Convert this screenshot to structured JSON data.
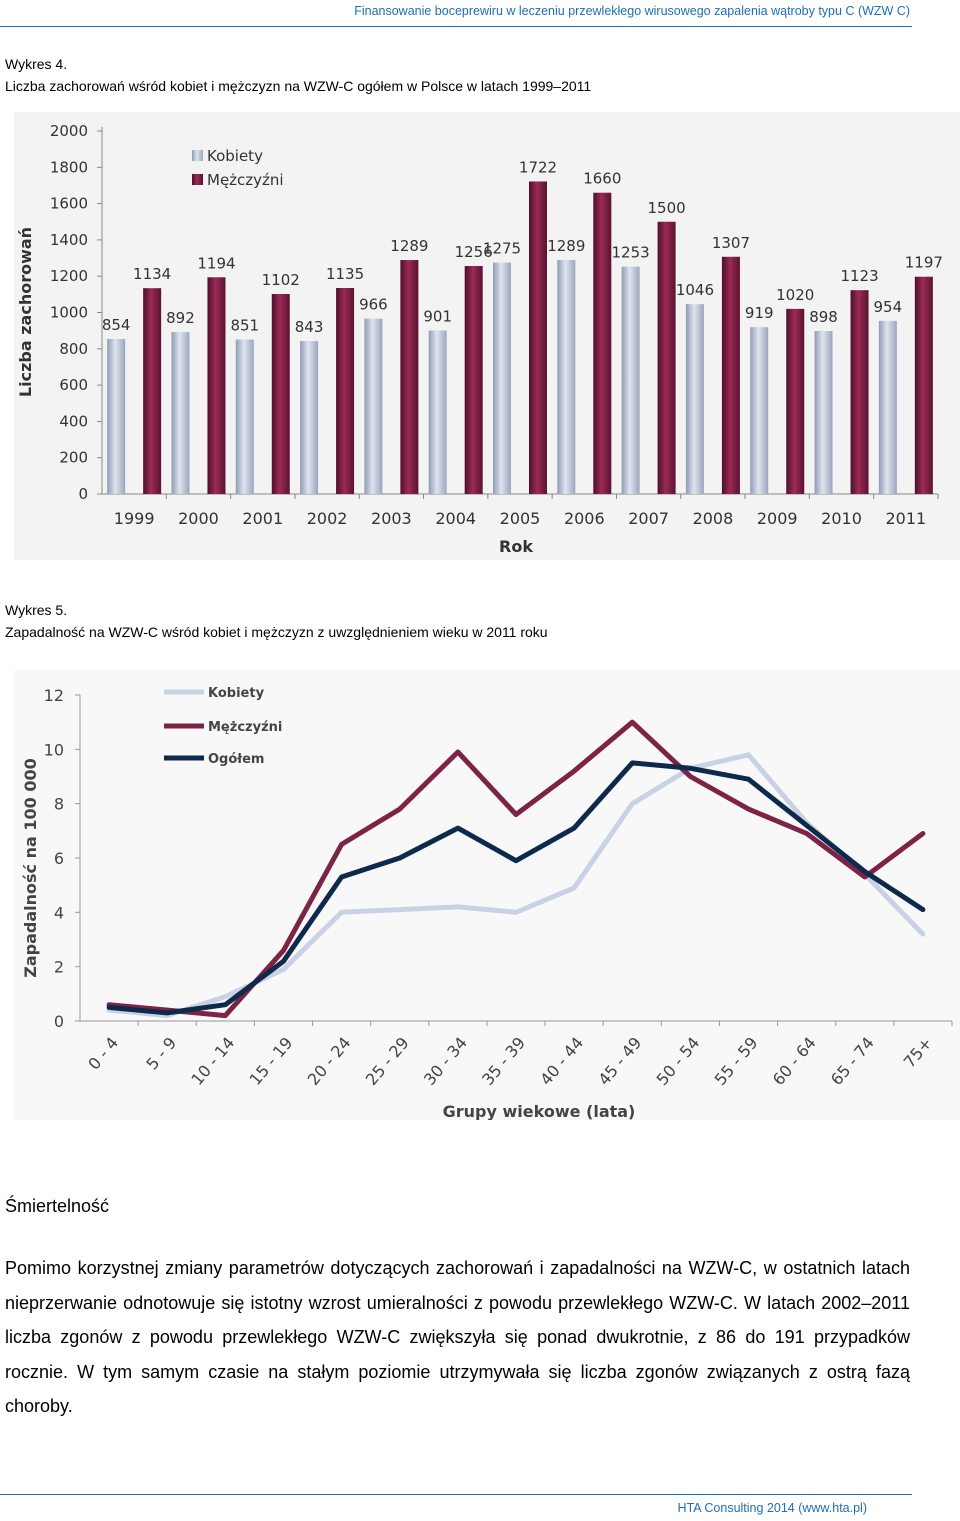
{
  "header": {
    "running_title": "Finansowanie boceprewiru w leczeniu przewlekłego wirusowego zapalenia wątroby typu C (WZW C)"
  },
  "figure4": {
    "number": "Wykres 4.",
    "caption": "Liczba zachorowań wśród kobiet i mężczyzn na WZW-C ogółem w Polsce w latach 1999–2011"
  },
  "figure5": {
    "number": "Wykres 5.",
    "caption": "Zapadalność na WZW-C wśród kobiet i mężczyzn z uwzględnieniem wieku w 2011 roku"
  },
  "chart_data": [
    {
      "type": "bar",
      "categories": [
        "1999",
        "2000",
        "2001",
        "2002",
        "2003",
        "2004",
        "2005",
        "2006",
        "2007",
        "2008",
        "2009",
        "2010",
        "2011"
      ],
      "series": [
        {
          "name": "Kobiety",
          "color": "#b9c3d6",
          "values": [
            854,
            892,
            851,
            843,
            966,
            901,
            1275,
            1289,
            1253,
            1046,
            919,
            898,
            954
          ]
        },
        {
          "name": "Mężczyźni",
          "color": "#7c1f43",
          "values": [
            1134,
            1194,
            1102,
            1135,
            1289,
            1256,
            1722,
            1660,
            1500,
            1307,
            1020,
            1123,
            1197
          ]
        }
      ],
      "xlabel": "Rok",
      "ylabel": "Liczba zachorowań",
      "ylim": [
        0,
        2000
      ],
      "yticks": [
        "0",
        "200",
        "400",
        "600",
        "800",
        "1000",
        "1200",
        "1400",
        "1600",
        "1800",
        "2000"
      ],
      "legend": "top-left",
      "grid": false
    },
    {
      "type": "line",
      "categories": [
        "0 - 4",
        "5 - 9",
        "10 - 14",
        "15 - 19",
        "20 - 24",
        "25 - 29",
        "30 - 34",
        "35 - 39",
        "40 - 44",
        "45 - 49",
        "50 - 54",
        "55 - 59",
        "60 - 64",
        "65 - 74",
        "75+"
      ],
      "series": [
        {
          "name": "Kobiety",
          "color": "#c9d2e4",
          "values": [
            0.4,
            0.2,
            0.9,
            1.9,
            4.0,
            4.1,
            4.2,
            4.0,
            4.9,
            8.0,
            9.3,
            9.8,
            7.3,
            5.4,
            3.2
          ]
        },
        {
          "name": "Mężczyźni",
          "color": "#7c2346",
          "values": [
            0.6,
            0.4,
            0.2,
            2.6,
            6.5,
            7.8,
            9.9,
            7.6,
            9.2,
            11.0,
            9.0,
            7.8,
            6.9,
            5.3,
            6.9
          ]
        },
        {
          "name": "Ogółem",
          "color": "#0d2a4d",
          "values": [
            0.5,
            0.3,
            0.6,
            2.2,
            5.3,
            6.0,
            7.1,
            5.9,
            7.1,
            9.5,
            9.3,
            8.9,
            7.2,
            5.5,
            4.1
          ]
        }
      ],
      "xlabel": "Grupy wiekowe (lata)",
      "ylabel": "Zapadalność na 100 000",
      "ylim": [
        0,
        12
      ],
      "yticks": [
        "0",
        "2",
        "4",
        "6",
        "8",
        "10",
        "12"
      ],
      "legend": "top-left",
      "grid": false
    }
  ],
  "section": {
    "heading": "Śmiertelność",
    "paragraph": "Pomimo korzystnej zmiany parametrów dotyczących zachorowań i zapadalności na WZW-C, w ostatnich latach nieprzerwanie odnotowuje się istotny wzrost umieralności z powodu przewlekłego WZW-C. W latach 2002–2011 liczba zgonów z powodu przewlekłego WZW-C zwiększyła się ponad dwukrotnie, z 86 do 191 przypadków rocznie. W tym samym czasie na stałym poziomie utrzymywała się liczba zgonów związanych z ostrą fazą choroby."
  },
  "footer": {
    "text": "HTA Consulting 2014 (www.hta.pl)"
  }
}
